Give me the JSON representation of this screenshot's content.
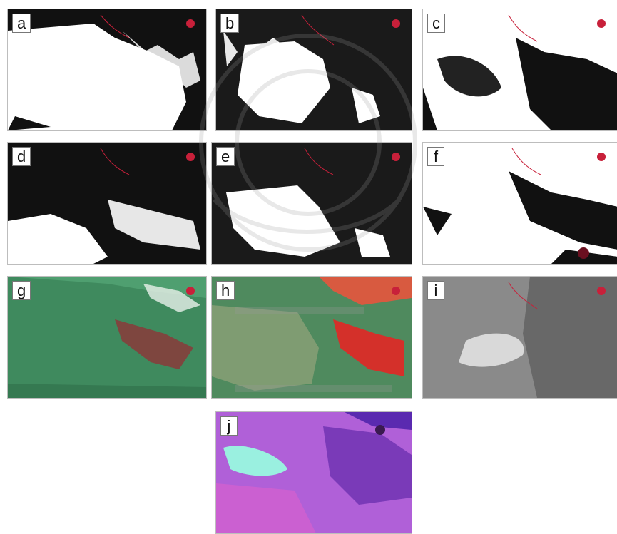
{
  "figure": {
    "panels": [
      {
        "id": "a",
        "label": "a",
        "kind": "binary"
      },
      {
        "id": "b",
        "label": "b",
        "kind": "binary"
      },
      {
        "id": "c",
        "label": "c",
        "kind": "binary"
      },
      {
        "id": "d",
        "label": "d",
        "kind": "binary"
      },
      {
        "id": "e",
        "label": "e",
        "kind": "binary"
      },
      {
        "id": "f",
        "label": "f",
        "kind": "binary"
      },
      {
        "id": "g",
        "label": "g",
        "kind": "false-color-green"
      },
      {
        "id": "h",
        "label": "h",
        "kind": "false-color-red-green"
      },
      {
        "id": "i",
        "label": "i",
        "kind": "grayscale"
      },
      {
        "id": "j",
        "label": "j",
        "kind": "false-color-purple"
      }
    ],
    "colors": {
      "binary_land": "#ffffff",
      "binary_bg": "#111111",
      "border_red": "#c8203a",
      "green_scene": "#3f8a5e",
      "red_scene": "#d4302a",
      "gray_scene": "#8a8a8a",
      "purple_scene": "#8a4ad0"
    }
  }
}
